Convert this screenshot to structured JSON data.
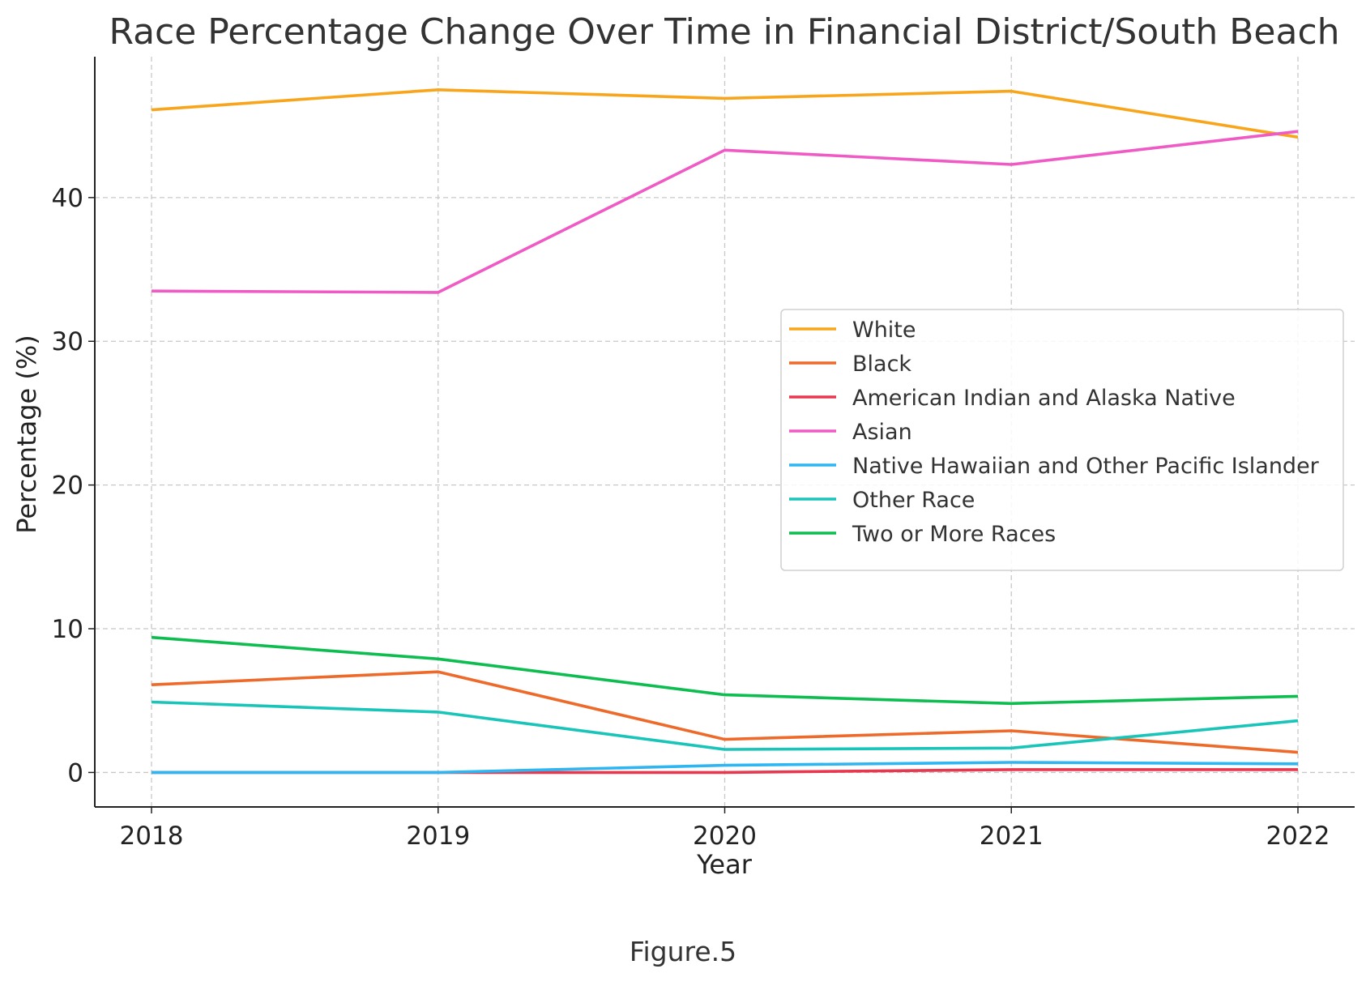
{
  "chart_data": {
    "type": "line",
    "title": "Race Percentage Change Over Time in Financial District/South Beach",
    "xlabel": "Year",
    "ylabel": "Percentage (%)",
    "x": [
      2018,
      2019,
      2020,
      2021,
      2022
    ],
    "x_tick_labels": [
      "2018",
      "2019",
      "2020",
      "2021",
      "2022"
    ],
    "y_ticks": [
      0,
      10,
      20,
      30,
      40
    ],
    "ylim": [
      -2.4,
      49.8
    ],
    "grid": true,
    "legend_position": "center-right",
    "series": [
      {
        "name": "White",
        "color": "#f9a51b",
        "values": [
          46.1,
          47.5,
          46.9,
          47.4,
          44.2
        ]
      },
      {
        "name": "Black",
        "color": "#ee6a2b",
        "values": [
          6.1,
          7.0,
          2.3,
          2.9,
          1.4
        ]
      },
      {
        "name": "American Indian and Alaska Native",
        "color": "#e8384f",
        "values": [
          0.0,
          0.0,
          0.0,
          0.2,
          0.2
        ]
      },
      {
        "name": "Asian",
        "color": "#f05ac5",
        "values": [
          33.5,
          33.4,
          43.3,
          42.3,
          44.6
        ]
      },
      {
        "name": "Native Hawaiian and Other Pacific Islander",
        "color": "#2db6f2",
        "values": [
          0.0,
          0.0,
          0.5,
          0.7,
          0.6
        ]
      },
      {
        "name": "Other Race",
        "color": "#19c4b9",
        "values": [
          4.9,
          4.2,
          1.6,
          1.7,
          3.6
        ]
      },
      {
        "name": "Two or More Races",
        "color": "#0dbd4f",
        "values": [
          9.4,
          7.9,
          5.4,
          4.8,
          5.3
        ]
      }
    ]
  },
  "figure_caption": "Figure.5"
}
